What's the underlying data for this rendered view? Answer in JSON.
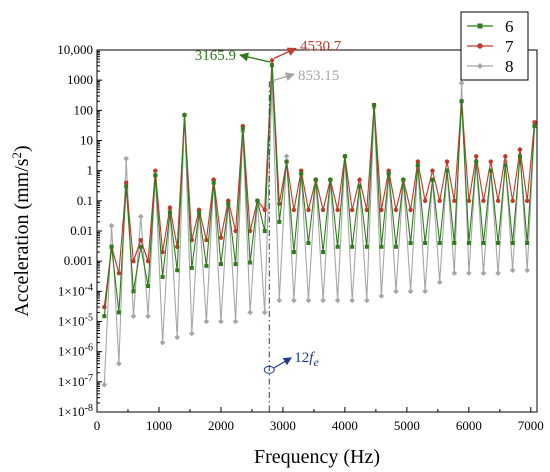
{
  "chart_data": {
    "type": "line",
    "xlabel": "Frequency (Hz)",
    "ylabel_main": "Acceleration (mm/s",
    "ylabel_sup": "2",
    "ylabel_tail": ")",
    "ylabel": "Acceleration (mm/s²)",
    "xlim": [
      0,
      7100
    ],
    "ylim": [
      1e-08,
      10000
    ],
    "yscale": "log",
    "x_ticks": [
      0,
      1000,
      2000,
      3000,
      4000,
      5000,
      6000,
      7000
    ],
    "x_tick_labels": [
      "0",
      "1000",
      "2000",
      "3000",
      "4000",
      "5000",
      "6000",
      "7000"
    ],
    "y_tick_labels": [
      {
        "v": -8,
        "base": "1×10",
        "exp": "-8"
      },
      {
        "v": -7,
        "base": "1×10",
        "exp": "-7"
      },
      {
        "v": -6,
        "base": "1×10",
        "exp": "-6"
      },
      {
        "v": -5,
        "base": "1×10",
        "exp": "-5"
      },
      {
        "v": -4,
        "base": "1×10",
        "exp": "-4"
      },
      {
        "v": -3,
        "base": "0.001",
        "exp": ""
      },
      {
        "v": -2,
        "base": "0.01",
        "exp": ""
      },
      {
        "v": -1,
        "base": "0.1",
        "exp": ""
      },
      {
        "v": 0,
        "base": "1",
        "exp": ""
      },
      {
        "v": 1,
        "base": "10",
        "exp": ""
      },
      {
        "v": 2,
        "base": "100",
        "exp": ""
      },
      {
        "v": 3,
        "base": "1000",
        "exp": ""
      },
      {
        "v": 4,
        "base": "10,000",
        "exp": ""
      }
    ],
    "legend_position": "top-right",
    "series": [
      {
        "name": "6",
        "color": "#2e7d1a",
        "marker": "square",
        "x": [
          118,
          235,
          353,
          471,
          588,
          706,
          824,
          941,
          1059,
          1177,
          1294,
          1412,
          1530,
          1647,
          1765,
          1883,
          2000,
          2118,
          2236,
          2353,
          2471,
          2589,
          2706,
          2824,
          2942,
          3059,
          3177,
          3295,
          3412,
          3530,
          3648,
          3765,
          3883,
          4001,
          4118,
          4236,
          4354,
          4471,
          4589,
          4707,
          4824,
          4942,
          5060,
          5177,
          5295,
          5413,
          5530,
          5648,
          5766,
          5883,
          6001,
          6119,
          6236,
          6354,
          6472,
          6589,
          6707,
          6825,
          6942,
          7060
        ],
        "y": [
          1.5e-05,
          0.003,
          2e-05,
          0.3,
          0.0001,
          0.003,
          0.00015,
          0.7,
          0.0003,
          0.04,
          0.0005,
          70,
          0.0006,
          0.04,
          0.0007,
          0.4,
          0.0008,
          0.08,
          0.0008,
          25,
          0.0009,
          0.1,
          0.01,
          3165.9,
          0.02,
          2,
          0.002,
          0.8,
          0.004,
          0.5,
          0.002,
          0.5,
          0.003,
          3,
          0.003,
          0.3,
          0.003,
          150,
          0.003,
          0.8,
          0.003,
          0.5,
          0.004,
          1.5,
          0.004,
          0.5,
          0.004,
          1,
          0.004,
          200,
          0.004,
          2,
          0.004,
          1,
          0.004,
          1.5,
          0.004,
          3,
          0.004,
          30
        ]
      },
      {
        "name": "7",
        "color": "#c0392b",
        "marker": "circle",
        "x": [
          118,
          235,
          353,
          471,
          588,
          706,
          824,
          941,
          1059,
          1177,
          1294,
          1412,
          1530,
          1647,
          1765,
          1883,
          2000,
          2118,
          2236,
          2353,
          2471,
          2589,
          2706,
          2824,
          2942,
          3059,
          3177,
          3295,
          3412,
          3530,
          3648,
          3765,
          3883,
          4001,
          4118,
          4236,
          4354,
          4471,
          4589,
          4707,
          4824,
          4942,
          5060,
          5177,
          5295,
          5413,
          5530,
          5648,
          5766,
          5883,
          6001,
          6119,
          6236,
          6354,
          6472,
          6589,
          6707,
          6825,
          6942,
          7060
        ],
        "y": [
          3e-05,
          0.003,
          0.0004,
          0.4,
          0.001,
          0.005,
          0.001,
          1,
          0.002,
          0.06,
          0.003,
          70,
          0.005,
          0.05,
          0.005,
          0.5,
          0.006,
          0.1,
          0.01,
          30,
          0.01,
          0.1,
          0.05,
          4530.7,
          0.08,
          2,
          0.05,
          1,
          0.05,
          0.5,
          0.05,
          0.5,
          0.05,
          3,
          0.05,
          0.5,
          0.05,
          150,
          0.05,
          1,
          0.05,
          0.5,
          0.05,
          2,
          0.1,
          1,
          0.1,
          2,
          0.1,
          200,
          0.1,
          3,
          0.1,
          2,
          0.1,
          3,
          0.1,
          5,
          0.1,
          40
        ]
      },
      {
        "name": "8",
        "color": "#a6a6a6",
        "marker": "diamond",
        "x": [
          118,
          235,
          353,
          471,
          588,
          706,
          824,
          941,
          1059,
          1177,
          1294,
          1412,
          1530,
          1647,
          1765,
          1883,
          2000,
          2118,
          2236,
          2353,
          2471,
          2589,
          2706,
          2824,
          2942,
          3059,
          3177,
          3295,
          3412,
          3530,
          3648,
          3765,
          3883,
          4001,
          4118,
          4236,
          4354,
          4471,
          4589,
          4707,
          4824,
          4942,
          5060,
          5177,
          5295,
          5413,
          5530,
          5648,
          5766,
          5883,
          6001,
          6119,
          6236,
          6354,
          6472,
          6589,
          6707,
          6825,
          6942,
          7060
        ],
        "y": [
          8e-08,
          0.015,
          4e-07,
          2.5,
          1.5e-05,
          0.03,
          1.5e-05,
          0.7,
          2e-06,
          0.05,
          3e-06,
          70,
          4e-06,
          0.05,
          1e-05,
          0.5,
          1e-05,
          0.1,
          1e-05,
          20,
          2e-05,
          0.1,
          2e-05,
          853.15,
          5e-05,
          3,
          5e-05,
          0.8,
          5e-05,
          0.5,
          5e-05,
          0.5,
          5e-05,
          3,
          5e-05,
          0.3,
          5e-05,
          120,
          7e-05,
          0.8,
          0.0001,
          0.5,
          0.0001,
          1.5,
          0.0001,
          0.5,
          0.0002,
          1,
          0.0004,
          800,
          0.0004,
          2,
          0.0004,
          1,
          0.0004,
          2,
          0.0005,
          5,
          0.0005,
          30
        ]
      }
    ],
    "annotations": {
      "peak6": {
        "text": "3165.9",
        "color": "#2e7d1a"
      },
      "peak7": {
        "text": "4530.7",
        "color": "#c0392b"
      },
      "peak8": {
        "text": "853.15",
        "color": "#a6a6a6"
      },
      "fe_marker": {
        "text": "12",
        "sub": "e",
        "fvar": "f",
        "x": 2780,
        "color": "#1f3a8a"
      }
    }
  }
}
